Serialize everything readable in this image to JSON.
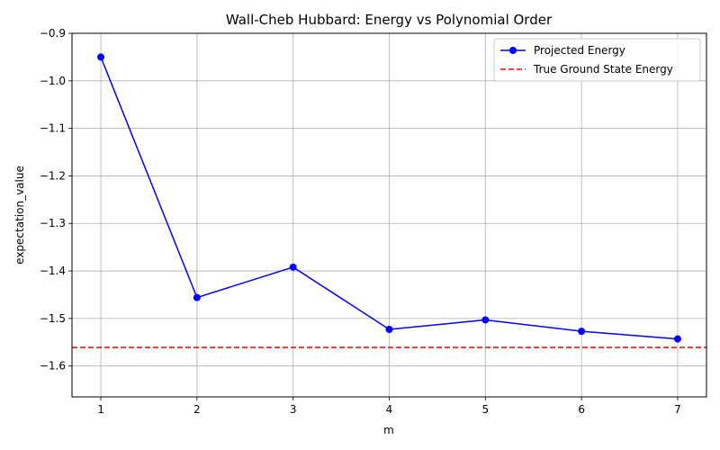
{
  "chart_data": {
    "type": "line",
    "title": "Wall-Cheb Hubbard: Energy vs Polynomial Order",
    "xlabel": "m",
    "ylabel": "expectation_value",
    "xlim": [
      0.7,
      7.3
    ],
    "ylim": [
      -1.665,
      -0.9
    ],
    "xticks": [
      1,
      2,
      3,
      4,
      5,
      6,
      7
    ],
    "xtick_labels": [
      "1",
      "2",
      "3",
      "4",
      "5",
      "6",
      "7"
    ],
    "yticks": [
      -0.9,
      -1.0,
      -1.1,
      -1.2,
      -1.3,
      -1.4,
      -1.5,
      -1.6
    ],
    "ytick_labels": [
      "−0.9",
      "−1.0",
      "−1.1",
      "−1.2",
      "−1.3",
      "−1.4",
      "−1.5",
      "−1.6"
    ],
    "grid": true,
    "legend_position": "top-right",
    "series": [
      {
        "name": "Projected Energy",
        "kind": "line-marker",
        "color": "#0000ff",
        "x": [
          1,
          2,
          3,
          4,
          5,
          6,
          7
        ],
        "y": [
          -0.95,
          -1.456,
          -1.392,
          -1.523,
          -1.503,
          -1.527,
          -1.543
        ]
      }
    ],
    "reference_lines": [
      {
        "name": "True Ground State Energy",
        "orientation": "horizontal",
        "style": "dashed",
        "color": "#ff0000",
        "value": -1.561
      }
    ]
  }
}
